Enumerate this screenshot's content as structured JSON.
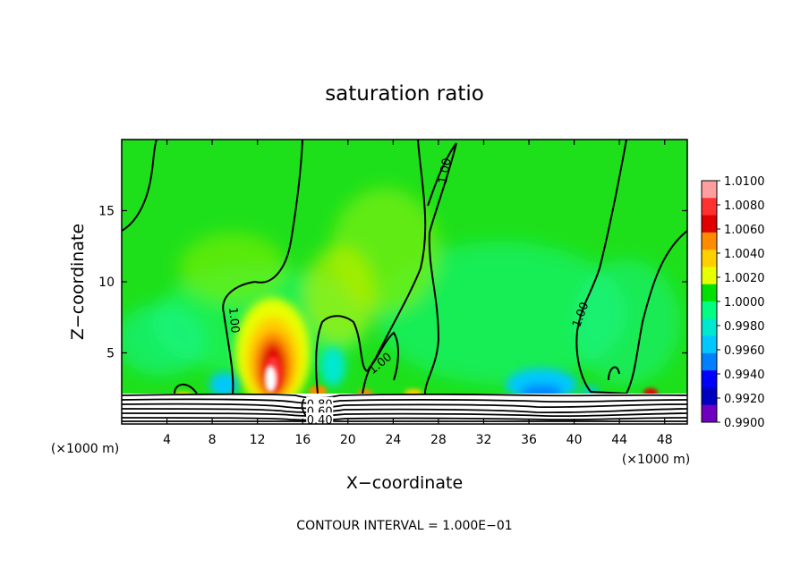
{
  "chart_data": {
    "type": "heatmap",
    "title": "saturation ratio",
    "xlabel": "X−coordinate",
    "ylabel": "Z−coordinate",
    "x_unit": "(×1000 m)",
    "y_unit": "(×1000 m)",
    "xlim": [
      0,
      50
    ],
    "ylim": [
      0,
      20
    ],
    "x_ticks": [
      4,
      8,
      12,
      16,
      20,
      24,
      28,
      32,
      36,
      40,
      44,
      48
    ],
    "y_ticks": [
      5,
      10,
      15
    ],
    "colorbar": {
      "levels": [
        "1.0100",
        "1.0080",
        "1.0060",
        "1.0040",
        "1.0020",
        "1.0000",
        "0.9980",
        "0.9960",
        "0.9940",
        "0.9920",
        "0.9900"
      ],
      "colors": [
        "#ff9e9e",
        "#ff3030",
        "#e00000",
        "#ff8c00",
        "#ffd000",
        "#e8ff00",
        "#00e000",
        "#00ff80",
        "#00e8d0",
        "#00c8ff",
        "#0080ff",
        "#0000ff",
        "#0000c0",
        "#7000c0"
      ]
    },
    "contour_labels": [
      {
        "text": "1.00",
        "x": 10.0,
        "y": 7.3,
        "rotation": 85
      },
      {
        "text": "1.00",
        "x": 28.5,
        "y": 17.8,
        "rotation": -80
      },
      {
        "text": "1.00",
        "x": 22.8,
        "y": 4.3,
        "rotation": -40
      },
      {
        "text": "1.00",
        "x": 40.5,
        "y": 7.7,
        "rotation": -70
      },
      {
        "text": "0.80",
        "x": 17.5,
        "y": 1.4,
        "rotation": 0
      },
      {
        "text": "0.60",
        "x": 17.5,
        "y": 0.9,
        "rotation": 0
      },
      {
        "text": "0.40",
        "x": 17.5,
        "y": 0.3,
        "rotation": 0
      }
    ],
    "hotspots": [
      {
        "x": 13.2,
        "y": 3.6,
        "value": 1.01
      },
      {
        "x": 17.3,
        "y": 2.4,
        "value": 1.005
      },
      {
        "x": 21.8,
        "y": 2.3,
        "value": 1.004
      },
      {
        "x": 25.5,
        "y": 2.3,
        "value": 1.004
      },
      {
        "x": 46.4,
        "y": 2.3,
        "value": 1.006
      }
    ],
    "coldspots": [
      {
        "x": 9.5,
        "y": 2.4,
        "value": 0.9955
      },
      {
        "x": 18.5,
        "y": 2.6,
        "value": 0.9955
      },
      {
        "x": 37.2,
        "y": 2.3,
        "value": 0.993
      },
      {
        "x": 41.5,
        "y": 2.3,
        "value": 0.996
      }
    ],
    "surface_z": 2.0,
    "footnote": "CONTOUR INTERVAL = 1.000E−01"
  }
}
